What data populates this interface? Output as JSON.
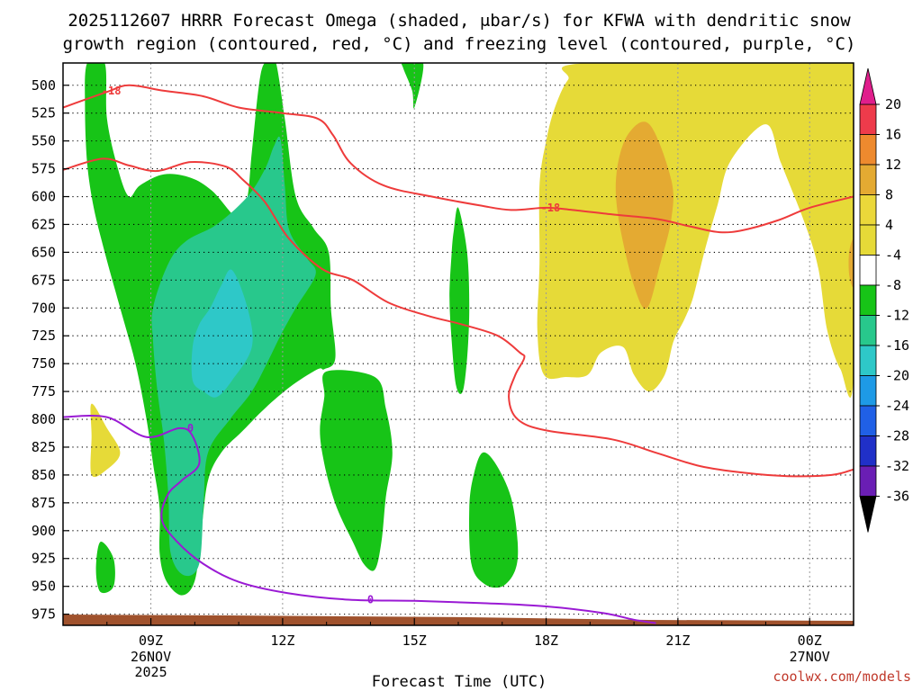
{
  "chart_data": {
    "type": "contour",
    "title_line1": "2025112607 HRRR Forecast Omega (shaded, μbar/s) for KFWA with dendritic snow",
    "title_line2": "growth region (contoured, red, °C) and freezing level (contoured, purple, °C)",
    "xlabel": "Forecast Time (UTC)",
    "credit": "coolwx.com/models",
    "x_range_hours": [
      7,
      25
    ],
    "y_range_hPa": [
      480,
      985
    ],
    "y_ticks": [
      500,
      525,
      550,
      575,
      600,
      625,
      650,
      675,
      700,
      725,
      750,
      775,
      800,
      825,
      850,
      875,
      900,
      925,
      950,
      975
    ],
    "x_ticks": [
      {
        "hour": 9,
        "label": "09Z",
        "sub1": "26NOV",
        "sub2": "2025"
      },
      {
        "hour": 12,
        "label": "12Z",
        "sub1": "",
        "sub2": ""
      },
      {
        "hour": 15,
        "label": "15Z",
        "sub1": "",
        "sub2": ""
      },
      {
        "hour": 18,
        "label": "18Z",
        "sub1": "",
        "sub2": ""
      },
      {
        "hour": 21,
        "label": "21Z",
        "sub1": "",
        "sub2": ""
      },
      {
        "hour": 24,
        "label": "00Z",
        "sub1": "27NOV",
        "sub2": ""
      }
    ],
    "colorbar": {
      "levels": [
        20,
        16,
        12,
        8,
        4,
        -4,
        -8,
        -12,
        -16,
        -20,
        -24,
        -28,
        -32,
        -36
      ],
      "colors": [
        "#ee3b4b",
        "#ee8a2e",
        "#e4aa32",
        "#ebd83a",
        "#e6da38",
        "#ffffff",
        "#17c417",
        "#28c88c",
        "#2ec8c8",
        "#1e9ae6",
        "#2060e6",
        "#2030c8",
        "#6a1eb4",
        "#9a14c8",
        "#a0a0a0"
      ],
      "top_color": "#e01e8c",
      "bottom_color": "#000000"
    },
    "fill_colors": {
      "green": "#17c417",
      "teal": "#28c88c",
      "cyan": "#2ec8c8",
      "yellow": "#e6da38",
      "orange": "#e4aa32",
      "ground": "#a0522d"
    },
    "shaded_regions": [
      {
        "label": "-4",
        "color_key": "green",
        "points": [
          [
            7.55,
            480
          ],
          [
            7.95,
            480
          ],
          [
            8.0,
            530
          ],
          [
            8.25,
            575
          ],
          [
            8.5,
            600
          ],
          [
            8.75,
            590
          ],
          [
            9.3,
            580
          ],
          [
            9.9,
            583
          ],
          [
            10.4,
            595
          ],
          [
            11.0,
            620
          ],
          [
            11.2,
            600
          ],
          [
            11.3,
            560
          ],
          [
            11.5,
            490
          ],
          [
            11.7,
            478
          ],
          [
            11.85,
            480
          ],
          [
            12.05,
            530
          ],
          [
            12.3,
            600
          ],
          [
            12.7,
            628
          ],
          [
            13.05,
            650
          ],
          [
            13.1,
            700
          ],
          [
            13.2,
            745
          ],
          [
            12.95,
            755
          ],
          [
            12.8,
            755
          ],
          [
            12.2,
            770
          ],
          [
            11.6,
            790
          ],
          [
            11.1,
            810
          ],
          [
            10.6,
            830
          ],
          [
            10.3,
            855
          ],
          [
            10.15,
            900
          ],
          [
            10.0,
            945
          ],
          [
            9.7,
            958
          ],
          [
            9.35,
            945
          ],
          [
            9.2,
            920
          ],
          [
            9.2,
            880
          ],
          [
            9.05,
            840
          ],
          [
            8.9,
            800
          ],
          [
            8.65,
            750
          ],
          [
            8.3,
            700
          ],
          [
            7.95,
            650
          ],
          [
            7.7,
            610
          ],
          [
            7.55,
            570
          ],
          [
            7.5,
            520
          ]
        ]
      },
      {
        "label": "-8",
        "color_key": "teal",
        "points": [
          [
            11.95,
            548
          ],
          [
            12.05,
            590
          ],
          [
            12.15,
            630
          ],
          [
            12.55,
            655
          ],
          [
            12.75,
            670
          ],
          [
            12.3,
            700
          ],
          [
            11.95,
            725
          ],
          [
            11.7,
            745
          ],
          [
            11.3,
            775
          ],
          [
            10.8,
            800
          ],
          [
            10.3,
            830
          ],
          [
            10.2,
            875
          ],
          [
            10.1,
            930
          ],
          [
            9.75,
            940
          ],
          [
            9.45,
            920
          ],
          [
            9.4,
            870
          ],
          [
            9.3,
            820
          ],
          [
            9.15,
            775
          ],
          [
            9.05,
            730
          ],
          [
            9.05,
            700
          ],
          [
            9.4,
            660
          ],
          [
            9.8,
            640
          ],
          [
            10.5,
            625
          ],
          [
            11.2,
            600
          ],
          [
            11.6,
            575
          ],
          [
            11.8,
            555
          ]
        ]
      },
      {
        "label": "-12",
        "color_key": "cyan",
        "points": [
          [
            10.85,
            666
          ],
          [
            11.2,
            700
          ],
          [
            11.3,
            735
          ],
          [
            10.85,
            765
          ],
          [
            10.5,
            780
          ],
          [
            10.2,
            775
          ],
          [
            9.95,
            765
          ],
          [
            9.95,
            735
          ],
          [
            10.1,
            715
          ],
          [
            10.35,
            700
          ],
          [
            10.6,
            680
          ]
        ]
      },
      {
        "label": "-4",
        "color_key": "green",
        "points": [
          [
            13.0,
            757
          ],
          [
            14.1,
            762
          ],
          [
            14.35,
            790
          ],
          [
            14.5,
            830
          ],
          [
            14.35,
            870
          ],
          [
            14.25,
            910
          ],
          [
            14.1,
            935
          ],
          [
            13.85,
            930
          ],
          [
            13.6,
            910
          ],
          [
            13.35,
            890
          ],
          [
            13.15,
            870
          ],
          [
            12.95,
            840
          ],
          [
            12.85,
            810
          ],
          [
            12.95,
            780
          ]
        ]
      },
      {
        "label": "-4",
        "color_key": "green",
        "points": [
          [
            14.75,
            480
          ],
          [
            15.2,
            480
          ],
          [
            15.0,
            520
          ],
          [
            14.95,
            505
          ],
          [
            14.75,
            485
          ]
        ]
      },
      {
        "label": "-4",
        "color_key": "green",
        "points": [
          [
            16.0,
            610
          ],
          [
            16.2,
            650
          ],
          [
            16.25,
            700
          ],
          [
            16.2,
            745
          ],
          [
            16.1,
            775
          ],
          [
            15.95,
            770
          ],
          [
            15.85,
            730
          ],
          [
            15.8,
            690
          ],
          [
            15.85,
            650
          ],
          [
            15.9,
            630
          ]
        ]
      },
      {
        "label": "-4",
        "color_key": "green",
        "points": [
          [
            16.55,
            830
          ],
          [
            16.85,
            840
          ],
          [
            17.2,
            870
          ],
          [
            17.35,
            910
          ],
          [
            17.3,
            935
          ],
          [
            17.0,
            950
          ],
          [
            16.6,
            948
          ],
          [
            16.3,
            930
          ],
          [
            16.25,
            880
          ],
          [
            16.35,
            850
          ]
        ]
      },
      {
        "label": "-4",
        "color_key": "green",
        "points": [
          [
            7.85,
            910
          ],
          [
            8.15,
            925
          ],
          [
            8.15,
            950
          ],
          [
            7.85,
            955
          ],
          [
            7.75,
            935
          ]
        ]
      },
      {
        "label": "4",
        "color_key": "yellow",
        "points": [
          [
            7.65,
            786
          ],
          [
            8.0,
            808
          ],
          [
            8.3,
            830
          ],
          [
            8.0,
            845
          ],
          [
            7.65,
            850
          ],
          [
            7.65,
            815
          ]
        ]
      },
      {
        "label": "4",
        "color_key": "yellow",
        "points": [
          [
            18.95,
            480
          ],
          [
            25.0,
            480
          ],
          [
            25.0,
            760
          ],
          [
            24.7,
            755
          ],
          [
            24.4,
            720
          ],
          [
            24.2,
            665
          ],
          [
            23.9,
            625
          ],
          [
            23.35,
            570
          ],
          [
            23.0,
            535
          ],
          [
            22.2,
            568
          ],
          [
            21.9,
            608
          ],
          [
            21.6,
            650
          ],
          [
            21.35,
            690
          ],
          [
            21.15,
            710
          ],
          [
            20.9,
            730
          ],
          [
            20.7,
            760
          ],
          [
            20.35,
            775
          ],
          [
            20.0,
            760
          ],
          [
            19.75,
            735
          ],
          [
            19.25,
            740
          ],
          [
            18.95,
            760
          ],
          [
            18.45,
            762
          ],
          [
            17.95,
            760
          ],
          [
            17.8,
            720
          ],
          [
            17.85,
            660
          ],
          [
            17.85,
            590
          ],
          [
            18.0,
            550
          ],
          [
            18.2,
            520
          ],
          [
            18.5,
            495
          ]
        ]
      },
      {
        "label": "8",
        "color_key": "orange",
        "points": [
          [
            20.35,
            535
          ],
          [
            20.85,
            585
          ],
          [
            20.85,
            620
          ],
          [
            20.6,
            660
          ],
          [
            20.3,
            700
          ],
          [
            20.0,
            680
          ],
          [
            19.65,
            620
          ],
          [
            19.6,
            580
          ],
          [
            19.85,
            545
          ]
        ]
      },
      {
        "label": "8",
        "color_key": "orange",
        "points": [
          [
            25.0,
            640
          ],
          [
            24.9,
            650
          ],
          [
            24.9,
            670
          ],
          [
            25.0,
            680
          ]
        ]
      }
    ],
    "red_contours": [
      {
        "value": "-18",
        "label_hour": 8.1,
        "label_hPa": 505,
        "points": [
          [
            7,
            520
          ],
          [
            8,
            506
          ],
          [
            8.5,
            500
          ],
          [
            9.3,
            505
          ],
          [
            10.2,
            510
          ],
          [
            11.0,
            520
          ],
          [
            12.0,
            525
          ],
          [
            12.8,
            530
          ],
          [
            13.15,
            545
          ],
          [
            13.55,
            570
          ],
          [
            14.3,
            590
          ],
          [
            15.4,
            600
          ],
          [
            16.5,
            608
          ],
          [
            17.2,
            612
          ],
          [
            18.0,
            610
          ],
          [
            18.6,
            612
          ],
          [
            19.5,
            616
          ],
          [
            20.5,
            620
          ],
          [
            21.3,
            627
          ],
          [
            21.95,
            632
          ],
          [
            22.5,
            630
          ],
          [
            23.3,
            621
          ],
          [
            24.0,
            610
          ],
          [
            25.0,
            600
          ]
        ]
      },
      {
        "value": "-18",
        "points": [
          [
            7,
            576
          ],
          [
            7.9,
            566
          ],
          [
            8.5,
            572
          ],
          [
            9.15,
            577
          ],
          [
            9.9,
            569
          ],
          [
            10.7,
            573
          ],
          [
            11.1,
            585
          ],
          [
            11.6,
            605
          ],
          [
            12.15,
            638
          ],
          [
            12.9,
            665
          ],
          [
            13.6,
            675
          ],
          [
            14.4,
            695
          ],
          [
            15.3,
            707
          ],
          [
            16.1,
            715
          ],
          [
            16.9,
            725
          ],
          [
            17.4,
            740
          ],
          [
            17.5,
            745
          ],
          [
            17.3,
            760
          ],
          [
            17.15,
            780
          ],
          [
            17.35,
            800
          ],
          [
            18.0,
            810
          ],
          [
            19.5,
            818
          ],
          [
            20.5,
            830
          ],
          [
            21.5,
            842
          ],
          [
            22.5,
            848
          ],
          [
            23.5,
            851
          ],
          [
            24.5,
            850
          ],
          [
            25.0,
            845
          ]
        ]
      }
    ],
    "purple_contour": {
      "value": "0",
      "label_hour": 14.0,
      "label_hPa": 962,
      "points": [
        [
          7,
          798
        ],
        [
          8.0,
          798
        ],
        [
          8.9,
          816
        ],
        [
          9.65,
          808
        ],
        [
          9.95,
          815
        ],
        [
          10.1,
          840
        ],
        [
          9.7,
          855
        ],
        [
          9.38,
          868
        ],
        [
          9.25,
          890
        ],
        [
          9.6,
          910
        ],
        [
          10.2,
          930
        ],
        [
          11.0,
          946
        ],
        [
          12.1,
          956
        ],
        [
          13.5,
          962
        ],
        [
          15.0,
          963
        ],
        [
          16.5,
          965
        ],
        [
          18.0,
          968
        ],
        [
          19.3,
          974
        ],
        [
          20.0,
          980
        ],
        [
          20.5,
          983
        ]
      ]
    }
  }
}
